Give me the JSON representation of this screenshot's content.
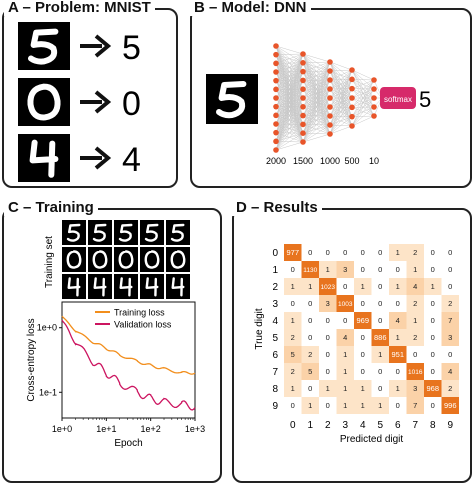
{
  "panels": {
    "a": {
      "title": "A – Problem: MNIST",
      "digits": [
        {
          "image": "digit-5",
          "label": "5"
        },
        {
          "image": "digit-0",
          "label": "0"
        },
        {
          "image": "digit-4",
          "label": "4"
        }
      ]
    },
    "b": {
      "title": "B – Model: DNN",
      "softmax": "softmax",
      "output": "5",
      "layers": [
        "2000",
        "1500",
        "1000",
        "500",
        "10"
      ]
    },
    "c": {
      "title": "C – Training",
      "training_set_label": "Training set",
      "legend": [
        "Training loss",
        "Validation loss"
      ]
    },
    "d": {
      "title": "D – Results"
    }
  },
  "colors": {
    "accent": "#d62a6a",
    "train": "#f28e1c",
    "val": "#cc1560",
    "node": "#e8552a"
  },
  "chart_data": [
    {
      "type": "line",
      "ylabel": "Cross-entropy loss",
      "xlabel": "Epoch",
      "xscale": "log",
      "yscale": "log",
      "x_ticks": [
        "1e+0",
        "1e+1",
        "1e+2",
        "1e+3"
      ],
      "y_ticks": [
        "1e+0",
        "1e-1"
      ],
      "xlim": [
        1,
        1000
      ],
      "ylim": [
        0.04,
        2.5
      ],
      "legend_position": "top-right",
      "series": [
        {
          "name": "Training loss",
          "x": [
            1,
            2,
            5,
            10,
            20,
            50,
            100,
            200,
            500,
            1000
          ],
          "y": [
            1.5,
            0.9,
            0.6,
            0.48,
            0.38,
            0.3,
            0.26,
            0.23,
            0.2,
            0.2
          ]
        },
        {
          "name": "Validation loss",
          "x": [
            1,
            2,
            5,
            10,
            20,
            50,
            100,
            200,
            500,
            1000
          ],
          "y": [
            1.3,
            0.6,
            0.3,
            0.2,
            0.14,
            0.1,
            0.08,
            0.07,
            0.065,
            0.06
          ]
        }
      ]
    },
    {
      "type": "heatmap",
      "xlabel": "Predicted digit",
      "ylabel": "True digit",
      "x_categories": [
        "0",
        "1",
        "2",
        "3",
        "4",
        "5",
        "6",
        "7",
        "8",
        "9"
      ],
      "y_categories": [
        "0",
        "1",
        "2",
        "3",
        "4",
        "5",
        "6",
        "7",
        "8",
        "9"
      ],
      "values": [
        [
          977,
          0,
          0,
          0,
          0,
          0,
          1,
          2,
          0,
          0
        ],
        [
          0,
          1130,
          1,
          3,
          0,
          0,
          0,
          1,
          0,
          0
        ],
        [
          1,
          1,
          1023,
          0,
          1,
          0,
          1,
          4,
          1,
          0
        ],
        [
          0,
          0,
          3,
          1003,
          0,
          0,
          0,
          2,
          0,
          2
        ],
        [
          1,
          0,
          0,
          0,
          969,
          0,
          4,
          1,
          0,
          7
        ],
        [
          2,
          0,
          0,
          4,
          0,
          886,
          1,
          2,
          0,
          3
        ],
        [
          5,
          2,
          0,
          1,
          0,
          1,
          951,
          0,
          0,
          0
        ],
        [
          2,
          5,
          0,
          1,
          0,
          0,
          0,
          1016,
          0,
          4
        ],
        [
          1,
          0,
          1,
          1,
          1,
          0,
          1,
          3,
          968,
          2
        ],
        [
          0,
          1,
          0,
          1,
          1,
          1,
          0,
          7,
          0,
          996
        ]
      ]
    }
  ]
}
